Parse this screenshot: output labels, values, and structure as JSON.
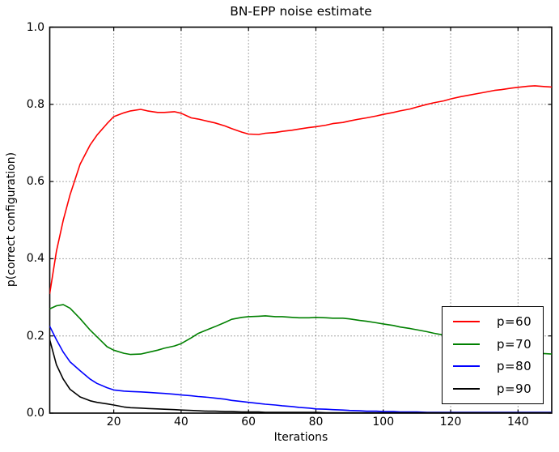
{
  "chart": {
    "title": "BN-EPP noise estimate",
    "xlabel": "Iterations",
    "ylabel": "p(correct configuration)"
  },
  "axes": {
    "x_ticks": [
      20,
      40,
      60,
      80,
      100,
      120,
      140
    ],
    "x_tick_labels": [
      "20",
      "40",
      "60",
      "80",
      "100",
      "120",
      "140"
    ],
    "y_ticks": [
      0,
      0.2,
      0.4,
      0.6,
      0.8,
      1.0
    ],
    "y_tick_labels": [
      "0.0",
      "0.2",
      "0.4",
      "0.6",
      "0.8",
      "1.0"
    ],
    "grid_style": "dotted"
  },
  "legend": {
    "position": "lower right",
    "entries": [
      {
        "label": "p=60",
        "color": "#ff0000"
      },
      {
        "label": "p=70",
        "color": "#008000"
      },
      {
        "label": "p=80",
        "color": "#0000ff"
      },
      {
        "label": "p=90",
        "color": "#000000"
      }
    ]
  },
  "chart_data": {
    "type": "line",
    "title": "BN-EPP noise estimate",
    "xlabel": "Iterations",
    "ylabel": "p(correct configuration)",
    "xlim": [
      1,
      150
    ],
    "ylim": [
      0,
      1
    ],
    "grid": true,
    "legend_position": "lower right",
    "x": [
      1,
      3,
      5,
      7,
      10,
      13,
      15,
      18,
      20,
      23,
      25,
      28,
      30,
      33,
      35,
      38,
      40,
      43,
      45,
      48,
      50,
      53,
      55,
      58,
      60,
      63,
      65,
      68,
      70,
      73,
      75,
      78,
      80,
      83,
      85,
      88,
      90,
      93,
      95,
      98,
      100,
      103,
      105,
      108,
      110,
      113,
      115,
      118,
      120,
      123,
      125,
      128,
      130,
      133,
      135,
      138,
      140,
      143,
      145,
      148,
      150
    ],
    "series": [
      {
        "name": "p=60",
        "color": "#ff0000",
        "values": [
          0.31,
          0.42,
          0.5,
          0.565,
          0.645,
          0.695,
          0.72,
          0.75,
          0.768,
          0.778,
          0.783,
          0.787,
          0.783,
          0.779,
          0.779,
          0.781,
          0.777,
          0.765,
          0.762,
          0.756,
          0.752,
          0.744,
          0.737,
          0.728,
          0.723,
          0.722,
          0.725,
          0.727,
          0.73,
          0.733,
          0.736,
          0.74,
          0.742,
          0.746,
          0.75,
          0.753,
          0.757,
          0.762,
          0.765,
          0.77,
          0.774,
          0.779,
          0.783,
          0.788,
          0.793,
          0.8,
          0.804,
          0.809,
          0.814,
          0.82,
          0.823,
          0.828,
          0.831,
          0.836,
          0.838,
          0.842,
          0.844,
          0.847,
          0.848,
          0.846,
          0.845
        ]
      },
      {
        "name": "p=70",
        "color": "#008000",
        "values": [
          0.27,
          0.278,
          0.281,
          0.272,
          0.245,
          0.215,
          0.198,
          0.172,
          0.163,
          0.155,
          0.152,
          0.153,
          0.157,
          0.163,
          0.168,
          0.174,
          0.18,
          0.195,
          0.206,
          0.217,
          0.224,
          0.235,
          0.243,
          0.248,
          0.25,
          0.251,
          0.252,
          0.25,
          0.25,
          0.248,
          0.247,
          0.247,
          0.248,
          0.247,
          0.246,
          0.246,
          0.244,
          0.24,
          0.238,
          0.234,
          0.231,
          0.227,
          0.223,
          0.219,
          0.216,
          0.211,
          0.207,
          0.202,
          0.198,
          0.193,
          0.188,
          0.182,
          0.177,
          0.171,
          0.167,
          0.162,
          0.159,
          0.156,
          0.155,
          0.154,
          0.153
        ]
      },
      {
        "name": "p=80",
        "color": "#0000ff",
        "values": [
          0.225,
          0.19,
          0.158,
          0.133,
          0.11,
          0.088,
          0.077,
          0.066,
          0.06,
          0.057,
          0.056,
          0.055,
          0.054,
          0.052,
          0.051,
          0.049,
          0.047,
          0.045,
          0.043,
          0.041,
          0.039,
          0.036,
          0.033,
          0.03,
          0.028,
          0.025,
          0.023,
          0.021,
          0.019,
          0.017,
          0.015,
          0.013,
          0.011,
          0.01,
          0.009,
          0.008,
          0.007,
          0.006,
          0.005,
          0.005,
          0.004,
          0.004,
          0.003,
          0.003,
          0.003,
          0.002,
          0.002,
          0.002,
          0.002,
          0.002,
          0.002,
          0.002,
          0.002,
          0.002,
          0.002,
          0.002,
          0.002,
          0.002,
          0.002,
          0.002,
          0.002
        ]
      },
      {
        "name": "p=90",
        "color": "#000000",
        "values": [
          0.19,
          0.125,
          0.088,
          0.062,
          0.042,
          0.032,
          0.028,
          0.024,
          0.021,
          0.016,
          0.014,
          0.013,
          0.012,
          0.011,
          0.01,
          0.009,
          0.008,
          0.007,
          0.006,
          0.005,
          0.005,
          0.004,
          0.004,
          0.003,
          0.003,
          0.003,
          0.002,
          0.002,
          0.002,
          0.002,
          0.002,
          0.002,
          0.002,
          0.001,
          0.001,
          0.001,
          0.001,
          0.001,
          0.001,
          0.001,
          0.001,
          0.001,
          0.001,
          0.001,
          0.001,
          0.001,
          0.001,
          0.001,
          0.001,
          0.001,
          0.001,
          0.001,
          0.001,
          0.001,
          0.001,
          0.001,
          0.001,
          0.001,
          0.001,
          0.001,
          0.001
        ]
      }
    ]
  }
}
